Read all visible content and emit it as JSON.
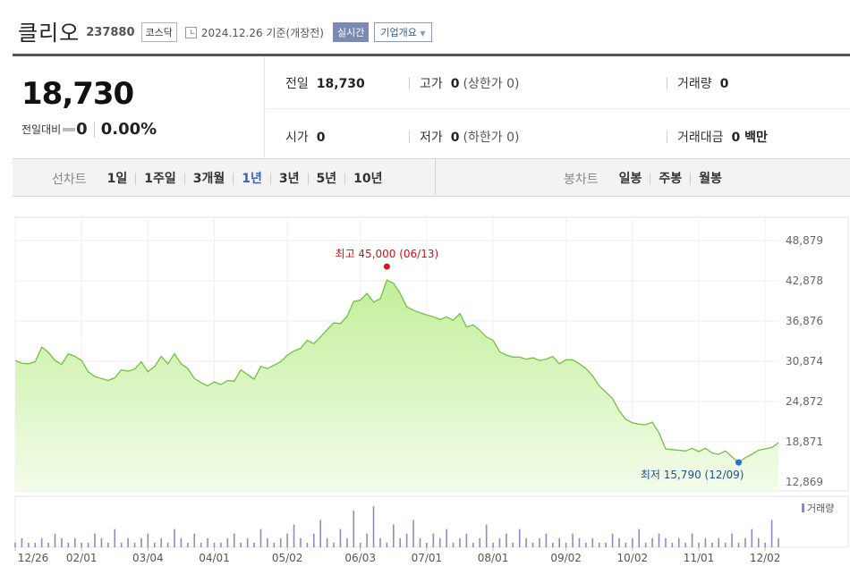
{
  "header": {
    "company_name": "클리오",
    "ticker": "237880",
    "market": "코스닥",
    "as_of": "2024.12.26  기준(개장전)",
    "realtime_label": "실시간",
    "company_overview_label": "기업개요"
  },
  "quote": {
    "price": "18,730",
    "change_label": "전일대비",
    "change_value": "0",
    "change_pct": "0.00%",
    "prev_close_label": "전일",
    "prev_close": "18,730",
    "high_label": "고가",
    "high": "0",
    "upper_limit": "(상한가 0)",
    "volume_label": "거래량",
    "volume": "0",
    "open_label": "시가",
    "open": "0",
    "low_label": "저가",
    "low": "0",
    "lower_limit": "(하한가 0)",
    "trade_value_label": "거래대금",
    "trade_value": "0 백만"
  },
  "period_bar": {
    "line_chart_label": "선차트",
    "line_tabs": [
      "1일",
      "1주일",
      "3개월",
      "1년",
      "3년",
      "5년",
      "10년"
    ],
    "selected_tab": "1년",
    "candle_chart_label": "봉차트",
    "candle_tabs": [
      "일봉",
      "주봉",
      "월봉"
    ]
  },
  "colors": {
    "line": "#74c043",
    "fill_top": "#c2ef9a",
    "fill_bottom": "#f3fcea",
    "high_marker": "#e0141e",
    "low_marker": "#2a6fd0",
    "volume_bar": "#8c8cc0",
    "selected_tab": "#3a64b8"
  },
  "chart_data": {
    "type": "area",
    "y_ticks": [
      "48,879",
      "42,878",
      "36,876",
      "30,874",
      "24,872",
      "18,871",
      "12,869"
    ],
    "ylim": [
      12869,
      48879
    ],
    "x_ticks": [
      "12/26",
      "02/01",
      "03/04",
      "04/01",
      "05/02",
      "06/03",
      "07/01",
      "08/01",
      "09/02",
      "10/02",
      "11/01",
      "12/02"
    ],
    "high_label": "최고 45,000 (06/13)",
    "high_value": 45000,
    "low_label": "최저 15,790 (12/09)",
    "low_value": 15790,
    "volume_label": "거래량",
    "series": [
      {
        "values": [
          31000,
          30600,
          30500,
          30800,
          33000,
          32200,
          31000,
          30400,
          32000,
          31600,
          31000,
          29300,
          28600,
          28300,
          28000,
          28400,
          29600,
          29400,
          29700,
          30800,
          29300,
          30100,
          31600,
          30500,
          32000,
          30500,
          29800,
          28300,
          27700,
          27200,
          27800,
          27400,
          28000,
          27900,
          29600,
          28900,
          28200,
          30100,
          29800,
          30300,
          30800,
          31800,
          32400,
          32800,
          34000,
          33500,
          34500,
          35600,
          36600,
          36500,
          37600,
          39800,
          40000,
          41000,
          39700,
          40200,
          43000,
          42500,
          41000,
          39000,
          38500,
          38100,
          37800,
          37500,
          37100,
          37500,
          37000,
          38000,
          36000,
          36300,
          35500,
          34500,
          34000,
          32300,
          31800,
          31500,
          31500,
          31200,
          31400,
          31000,
          31200,
          31600,
          30500,
          31100,
          31100,
          30500,
          29800,
          28700,
          27200,
          26300,
          25300,
          23500,
          22200,
          21700,
          21500,
          21400,
          21800,
          20200,
          17800,
          17700,
          17600,
          17500,
          17900,
          17400,
          17900,
          17200,
          17000,
          17500,
          16600,
          15790,
          16500,
          17000,
          17600,
          17800,
          18000,
          18730
        ]
      }
    ],
    "volumes": [
      1,
      2,
      1,
      1,
      2,
      1,
      3,
      2,
      1,
      2,
      1,
      1,
      3,
      2,
      1,
      4,
      1,
      2,
      1,
      2,
      3,
      1,
      2,
      1,
      4,
      2,
      1,
      3,
      1,
      2,
      1,
      1,
      2,
      3,
      1,
      2,
      1,
      4,
      2,
      1,
      2,
      3,
      5,
      2,
      1,
      3,
      6,
      2,
      1,
      4,
      2,
      8,
      1,
      3,
      9,
      2,
      1,
      5,
      2,
      3,
      6,
      2,
      1,
      3,
      2,
      4,
      1,
      2,
      3,
      1,
      2,
      5,
      1,
      2,
      3,
      1,
      4,
      2,
      1,
      2,
      3,
      1,
      2,
      1,
      3,
      2,
      1,
      2,
      1,
      1,
      3,
      2,
      1,
      2,
      4,
      1,
      2,
      3,
      2,
      1,
      2,
      1,
      3,
      1,
      2,
      1,
      2,
      1,
      3,
      1,
      2,
      4,
      2,
      1,
      6,
      2
    ]
  }
}
